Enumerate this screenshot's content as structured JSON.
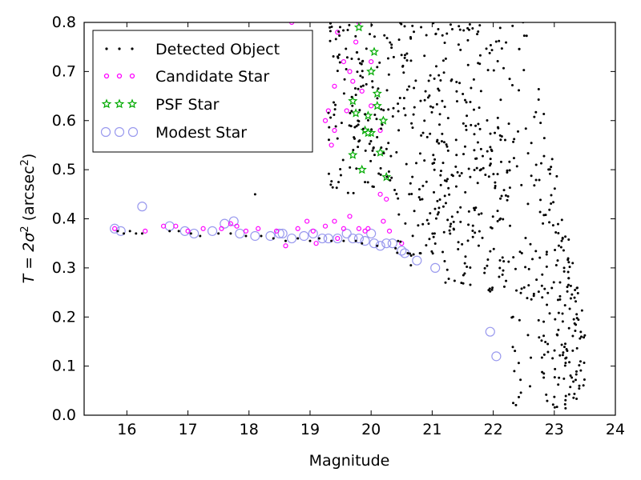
{
  "chart_data": {
    "type": "scatter",
    "title": "",
    "xlabel": "Magnitude",
    "ylabel": "T = 2σ² (arcsec²)",
    "ylabel_parts": {
      "main": "T = 2σ",
      "sup1": "2",
      "paren": " (arcsec",
      "sup2": "2",
      "close": ")"
    },
    "xlim": [
      15.3,
      24.0
    ],
    "ylim": [
      0.0,
      0.8
    ],
    "x_ticks": [
      16,
      17,
      18,
      19,
      20,
      21,
      22,
      23,
      24
    ],
    "x_tick_labels": [
      "16",
      "17",
      "18",
      "19",
      "20",
      "21",
      "22",
      "23",
      "24"
    ],
    "y_ticks": [
      0.0,
      0.1,
      0.2,
      0.3,
      0.4,
      0.5,
      0.6,
      0.7,
      0.8
    ],
    "y_tick_labels": [
      "0.0",
      "0.1",
      "0.2",
      "0.3",
      "0.4",
      "0.5",
      "0.6",
      "0.7",
      "0.8"
    ],
    "grid": false,
    "legend_position": "top-left",
    "legend": [
      {
        "label": "Detected Object",
        "marker": "dot",
        "color": "#000000"
      },
      {
        "label": "Candidate Star",
        "marker": "ring",
        "color": "#ff00ff"
      },
      {
        "label": "PSF Star",
        "marker": "star",
        "color": "#00aa00"
      },
      {
        "label": "Modest Star",
        "marker": "big-ring",
        "color": "#8888ff"
      }
    ],
    "series": [
      {
        "name": "Modest Star",
        "color": "#9999ee",
        "points": [
          [
            15.8,
            0.38
          ],
          [
            15.9,
            0.375
          ],
          [
            16.25,
            0.425
          ],
          [
            16.7,
            0.385
          ],
          [
            16.95,
            0.375
          ],
          [
            17.1,
            0.37
          ],
          [
            17.4,
            0.375
          ],
          [
            17.6,
            0.39
          ],
          [
            17.75,
            0.395
          ],
          [
            17.85,
            0.37
          ],
          [
            18.1,
            0.365
          ],
          [
            18.35,
            0.365
          ],
          [
            18.5,
            0.37
          ],
          [
            18.55,
            0.37
          ],
          [
            18.7,
            0.36
          ],
          [
            18.9,
            0.365
          ],
          [
            19.05,
            0.37
          ],
          [
            19.2,
            0.36
          ],
          [
            19.3,
            0.36
          ],
          [
            19.45,
            0.36
          ],
          [
            19.6,
            0.37
          ],
          [
            19.7,
            0.36
          ],
          [
            19.8,
            0.36
          ],
          [
            19.9,
            0.355
          ],
          [
            20.0,
            0.37
          ],
          [
            20.05,
            0.35
          ],
          [
            20.15,
            0.345
          ],
          [
            20.25,
            0.35
          ],
          [
            20.35,
            0.35
          ],
          [
            20.5,
            0.335
          ],
          [
            20.55,
            0.33
          ],
          [
            20.75,
            0.315
          ],
          [
            21.05,
            0.3
          ],
          [
            21.95,
            0.17
          ],
          [
            22.05,
            0.12
          ]
        ]
      },
      {
        "name": "Candidate Star",
        "color": "#ff00ff",
        "points": [
          [
            15.8,
            0.38
          ],
          [
            16.3,
            0.375
          ],
          [
            16.6,
            0.385
          ],
          [
            16.8,
            0.385
          ],
          [
            17.0,
            0.375
          ],
          [
            17.25,
            0.38
          ],
          [
            17.55,
            0.38
          ],
          [
            17.7,
            0.39
          ],
          [
            17.8,
            0.385
          ],
          [
            17.95,
            0.375
          ],
          [
            18.15,
            0.38
          ],
          [
            18.45,
            0.375
          ],
          [
            18.8,
            0.38
          ],
          [
            18.95,
            0.395
          ],
          [
            19.05,
            0.375
          ],
          [
            19.25,
            0.385
          ],
          [
            19.4,
            0.395
          ],
          [
            19.55,
            0.38
          ],
          [
            19.65,
            0.405
          ],
          [
            19.8,
            0.38
          ],
          [
            19.9,
            0.375
          ],
          [
            19.95,
            0.38
          ],
          [
            20.2,
            0.395
          ],
          [
            20.3,
            0.375
          ],
          [
            20.5,
            0.35
          ],
          [
            18.6,
            0.345
          ],
          [
            19.1,
            0.35
          ],
          [
            19.45,
            0.36
          ],
          [
            19.35,
            0.55
          ],
          [
            19.4,
            0.58
          ],
          [
            19.25,
            0.6
          ],
          [
            19.4,
            0.67
          ],
          [
            19.3,
            0.62
          ],
          [
            19.55,
            0.72
          ],
          [
            19.65,
            0.7
          ],
          [
            19.7,
            0.68
          ],
          [
            19.85,
            0.66
          ],
          [
            20.0,
            0.72
          ],
          [
            20.25,
            0.44
          ],
          [
            20.15,
            0.45
          ],
          [
            19.6,
            0.62
          ],
          [
            19.9,
            0.58
          ],
          [
            19.75,
            0.76
          ],
          [
            19.8,
            0.8
          ],
          [
            19.45,
            0.78
          ],
          [
            18.7,
            0.8
          ],
          [
            20.0,
            0.63
          ],
          [
            20.15,
            0.58
          ]
        ]
      },
      {
        "name": "PSF Star",
        "color": "#00aa00",
        "points": [
          [
            19.8,
            0.79
          ],
          [
            20.05,
            0.74
          ],
          [
            20.0,
            0.7
          ],
          [
            19.7,
            0.64
          ],
          [
            19.75,
            0.615
          ],
          [
            20.1,
            0.655
          ],
          [
            20.1,
            0.63
          ],
          [
            19.95,
            0.61
          ],
          [
            19.9,
            0.58
          ],
          [
            20.2,
            0.6
          ],
          [
            20.0,
            0.575
          ],
          [
            20.15,
            0.535
          ],
          [
            19.7,
            0.53
          ],
          [
            19.85,
            0.5
          ],
          [
            20.25,
            0.485
          ],
          [
            19.95,
            0.575
          ]
        ]
      },
      {
        "name": "Detected Object",
        "color": "#000000",
        "points": [
          [
            15.85,
            0.375
          ],
          [
            15.95,
            0.37
          ],
          [
            16.05,
            0.375
          ],
          [
            16.15,
            0.37
          ],
          [
            16.25,
            0.37
          ],
          [
            16.7,
            0.375
          ],
          [
            16.85,
            0.375
          ],
          [
            17.05,
            0.37
          ],
          [
            17.2,
            0.365
          ],
          [
            17.5,
            0.37
          ],
          [
            17.7,
            0.37
          ],
          [
            17.95,
            0.365
          ],
          [
            18.1,
            0.45
          ],
          [
            18.2,
            0.365
          ],
          [
            18.4,
            0.36
          ],
          [
            18.6,
            0.355
          ],
          [
            18.8,
            0.36
          ],
          [
            19.0,
            0.355
          ],
          [
            19.15,
            0.36
          ],
          [
            19.35,
            0.355
          ],
          [
            19.55,
            0.355
          ],
          [
            19.75,
            0.355
          ],
          [
            19.85,
            0.35
          ],
          [
            20.1,
            0.345
          ],
          [
            20.4,
            0.34
          ],
          [
            20.6,
            0.33
          ],
          [
            20.8,
            0.33
          ]
        ]
      }
    ],
    "extra_detected_seed": 20250
  }
}
